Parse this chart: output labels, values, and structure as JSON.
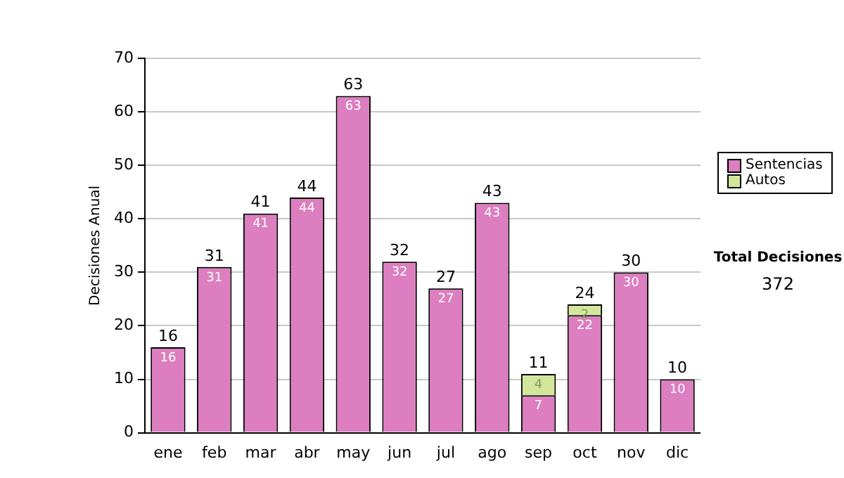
{
  "chart_data": {
    "type": "bar",
    "stacked": true,
    "ylabel": "Decisiones Anual",
    "categories": [
      "ene",
      "feb",
      "mar",
      "abr",
      "may",
      "jun",
      "jul",
      "ago",
      "sep",
      "oct",
      "nov",
      "dic"
    ],
    "series": [
      {
        "name": "Sentencias",
        "color": "#dc7ec0",
        "values": [
          16,
          31,
          41,
          44,
          63,
          32,
          27,
          43,
          7,
          22,
          30,
          10
        ]
      },
      {
        "name": "Autos",
        "color": "#d3e79b",
        "values": [
          null,
          null,
          null,
          null,
          null,
          null,
          null,
          null,
          4,
          2,
          null,
          null
        ]
      }
    ],
    "data_labels": true,
    "totals": [
      "16",
      "31",
      "41",
      "44",
      "63",
      "32",
      "27",
      "43",
      "11",
      "24",
      "30",
      "10"
    ],
    "ylim": [
      0,
      70
    ],
    "yticks": [
      0,
      10,
      20,
      30,
      40,
      50,
      60,
      70
    ],
    "grid": "y",
    "legend": "right",
    "annotations": [
      "Total Decisiones",
      "372"
    ]
  }
}
